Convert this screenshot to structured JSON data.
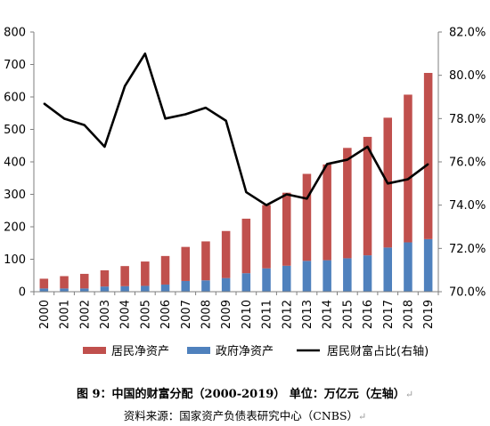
{
  "chart_data": {
    "type": "bar",
    "categories": [
      "2000",
      "2001",
      "2002",
      "2003",
      "2004",
      "2005",
      "2006",
      "2007",
      "2008",
      "2009",
      "2010",
      "2011",
      "2012",
      "2013",
      "2014",
      "2015",
      "2016",
      "2017",
      "2018",
      "2019"
    ],
    "series": [
      {
        "name": "居民净资产",
        "type": "bar",
        "stack": "wealth",
        "axis": "left",
        "color": "#c0504d",
        "values": [
          30,
          38,
          45,
          50,
          62,
          75,
          88,
          105,
          120,
          145,
          168,
          195,
          225,
          268,
          295,
          340,
          365,
          400,
          455,
          512
        ]
      },
      {
        "name": "政府净资产",
        "type": "bar",
        "stack": "wealth",
        "axis": "left",
        "color": "#4f81bd",
        "values": [
          10,
          10,
          10,
          16,
          17,
          18,
          22,
          33,
          35,
          42,
          57,
          72,
          80,
          95,
          97,
          103,
          112,
          136,
          152,
          162
        ]
      },
      {
        "name": "居民财富占比(右轴)",
        "type": "line",
        "axis": "right",
        "color": "#000000",
        "values": [
          78.7,
          78.0,
          77.7,
          76.7,
          79.5,
          81.0,
          78.0,
          78.2,
          78.5,
          77.9,
          74.6,
          74.0,
          74.5,
          74.3,
          75.9,
          76.1,
          76.7,
          75.0,
          75.2,
          75.9
        ]
      }
    ],
    "y_left": {
      "min": 0,
      "max": 800,
      "ticks": [
        "0",
        "100",
        "200",
        "300",
        "400",
        "500",
        "600",
        "700",
        "800"
      ]
    },
    "y_right": {
      "min": 70,
      "max": 82,
      "ticks": [
        "70.0%",
        "72.0%",
        "74.0%",
        "76.0%",
        "78.0%",
        "80.0%",
        "82.0%"
      ]
    },
    "grid": false,
    "legend_position": "bottom"
  },
  "caption": {
    "title": "图 9：中国的财富分配（2000-2019）  单位：万亿元（左轴）",
    "source": "资料来源：国家资产负债表研究中心（CNBS）",
    "return_mark": "↵"
  }
}
